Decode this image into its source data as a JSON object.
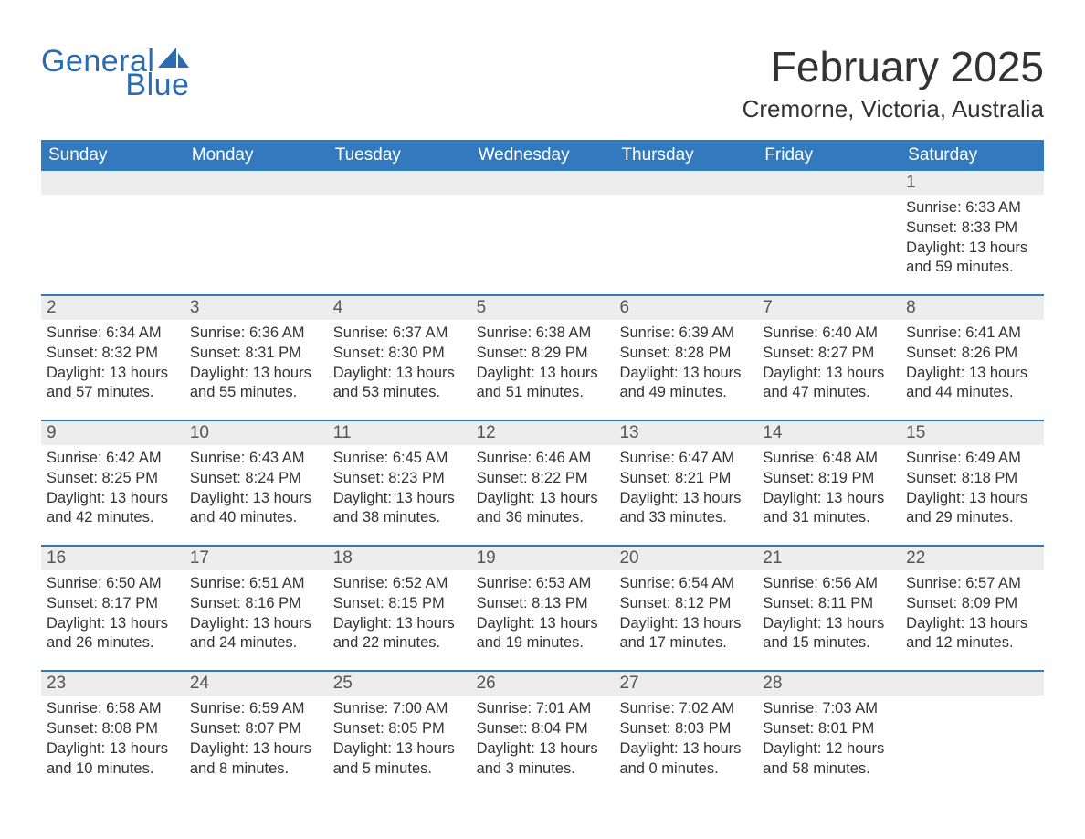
{
  "logo": {
    "line1": "General",
    "line2": "Blue",
    "accent_color": "#2b6cb0"
  },
  "title": "February 2025",
  "location": "Cremorne, Victoria, Australia",
  "colors": {
    "header_bg": "#3279be",
    "header_text": "#ffffff",
    "band_bg": "#ededed",
    "rule": "#3279be",
    "body_text": "#333333"
  },
  "weekdays": [
    "Sunday",
    "Monday",
    "Tuesday",
    "Wednesday",
    "Thursday",
    "Friday",
    "Saturday"
  ],
  "weeks": [
    [
      {
        "day": "",
        "sunrise": "",
        "sunset": "",
        "daylight": ""
      },
      {
        "day": "",
        "sunrise": "",
        "sunset": "",
        "daylight": ""
      },
      {
        "day": "",
        "sunrise": "",
        "sunset": "",
        "daylight": ""
      },
      {
        "day": "",
        "sunrise": "",
        "sunset": "",
        "daylight": ""
      },
      {
        "day": "",
        "sunrise": "",
        "sunset": "",
        "daylight": ""
      },
      {
        "day": "",
        "sunrise": "",
        "sunset": "",
        "daylight": ""
      },
      {
        "day": "1",
        "sunrise": "Sunrise: 6:33 AM",
        "sunset": "Sunset: 8:33 PM",
        "daylight": "Daylight: 13 hours and 59 minutes."
      }
    ],
    [
      {
        "day": "2",
        "sunrise": "Sunrise: 6:34 AM",
        "sunset": "Sunset: 8:32 PM",
        "daylight": "Daylight: 13 hours and 57 minutes."
      },
      {
        "day": "3",
        "sunrise": "Sunrise: 6:36 AM",
        "sunset": "Sunset: 8:31 PM",
        "daylight": "Daylight: 13 hours and 55 minutes."
      },
      {
        "day": "4",
        "sunrise": "Sunrise: 6:37 AM",
        "sunset": "Sunset: 8:30 PM",
        "daylight": "Daylight: 13 hours and 53 minutes."
      },
      {
        "day": "5",
        "sunrise": "Sunrise: 6:38 AM",
        "sunset": "Sunset: 8:29 PM",
        "daylight": "Daylight: 13 hours and 51 minutes."
      },
      {
        "day": "6",
        "sunrise": "Sunrise: 6:39 AM",
        "sunset": "Sunset: 8:28 PM",
        "daylight": "Daylight: 13 hours and 49 minutes."
      },
      {
        "day": "7",
        "sunrise": "Sunrise: 6:40 AM",
        "sunset": "Sunset: 8:27 PM",
        "daylight": "Daylight: 13 hours and 47 minutes."
      },
      {
        "day": "8",
        "sunrise": "Sunrise: 6:41 AM",
        "sunset": "Sunset: 8:26 PM",
        "daylight": "Daylight: 13 hours and 44 minutes."
      }
    ],
    [
      {
        "day": "9",
        "sunrise": "Sunrise: 6:42 AM",
        "sunset": "Sunset: 8:25 PM",
        "daylight": "Daylight: 13 hours and 42 minutes."
      },
      {
        "day": "10",
        "sunrise": "Sunrise: 6:43 AM",
        "sunset": "Sunset: 8:24 PM",
        "daylight": "Daylight: 13 hours and 40 minutes."
      },
      {
        "day": "11",
        "sunrise": "Sunrise: 6:45 AM",
        "sunset": "Sunset: 8:23 PM",
        "daylight": "Daylight: 13 hours and 38 minutes."
      },
      {
        "day": "12",
        "sunrise": "Sunrise: 6:46 AM",
        "sunset": "Sunset: 8:22 PM",
        "daylight": "Daylight: 13 hours and 36 minutes."
      },
      {
        "day": "13",
        "sunrise": "Sunrise: 6:47 AM",
        "sunset": "Sunset: 8:21 PM",
        "daylight": "Daylight: 13 hours and 33 minutes."
      },
      {
        "day": "14",
        "sunrise": "Sunrise: 6:48 AM",
        "sunset": "Sunset: 8:19 PM",
        "daylight": "Daylight: 13 hours and 31 minutes."
      },
      {
        "day": "15",
        "sunrise": "Sunrise: 6:49 AM",
        "sunset": "Sunset: 8:18 PM",
        "daylight": "Daylight: 13 hours and 29 minutes."
      }
    ],
    [
      {
        "day": "16",
        "sunrise": "Sunrise: 6:50 AM",
        "sunset": "Sunset: 8:17 PM",
        "daylight": "Daylight: 13 hours and 26 minutes."
      },
      {
        "day": "17",
        "sunrise": "Sunrise: 6:51 AM",
        "sunset": "Sunset: 8:16 PM",
        "daylight": "Daylight: 13 hours and 24 minutes."
      },
      {
        "day": "18",
        "sunrise": "Sunrise: 6:52 AM",
        "sunset": "Sunset: 8:15 PM",
        "daylight": "Daylight: 13 hours and 22 minutes."
      },
      {
        "day": "19",
        "sunrise": "Sunrise: 6:53 AM",
        "sunset": "Sunset: 8:13 PM",
        "daylight": "Daylight: 13 hours and 19 minutes."
      },
      {
        "day": "20",
        "sunrise": "Sunrise: 6:54 AM",
        "sunset": "Sunset: 8:12 PM",
        "daylight": "Daylight: 13 hours and 17 minutes."
      },
      {
        "day": "21",
        "sunrise": "Sunrise: 6:56 AM",
        "sunset": "Sunset: 8:11 PM",
        "daylight": "Daylight: 13 hours and 15 minutes."
      },
      {
        "day": "22",
        "sunrise": "Sunrise: 6:57 AM",
        "sunset": "Sunset: 8:09 PM",
        "daylight": "Daylight: 13 hours and 12 minutes."
      }
    ],
    [
      {
        "day": "23",
        "sunrise": "Sunrise: 6:58 AM",
        "sunset": "Sunset: 8:08 PM",
        "daylight": "Daylight: 13 hours and 10 minutes."
      },
      {
        "day": "24",
        "sunrise": "Sunrise: 6:59 AM",
        "sunset": "Sunset: 8:07 PM",
        "daylight": "Daylight: 13 hours and 8 minutes."
      },
      {
        "day": "25",
        "sunrise": "Sunrise: 7:00 AM",
        "sunset": "Sunset: 8:05 PM",
        "daylight": "Daylight: 13 hours and 5 minutes."
      },
      {
        "day": "26",
        "sunrise": "Sunrise: 7:01 AM",
        "sunset": "Sunset: 8:04 PM",
        "daylight": "Daylight: 13 hours and 3 minutes."
      },
      {
        "day": "27",
        "sunrise": "Sunrise: 7:02 AM",
        "sunset": "Sunset: 8:03 PM",
        "daylight": "Daylight: 13 hours and 0 minutes."
      },
      {
        "day": "28",
        "sunrise": "Sunrise: 7:03 AM",
        "sunset": "Sunset: 8:01 PM",
        "daylight": "Daylight: 12 hours and 58 minutes."
      },
      {
        "day": "",
        "sunrise": "",
        "sunset": "",
        "daylight": ""
      }
    ]
  ]
}
